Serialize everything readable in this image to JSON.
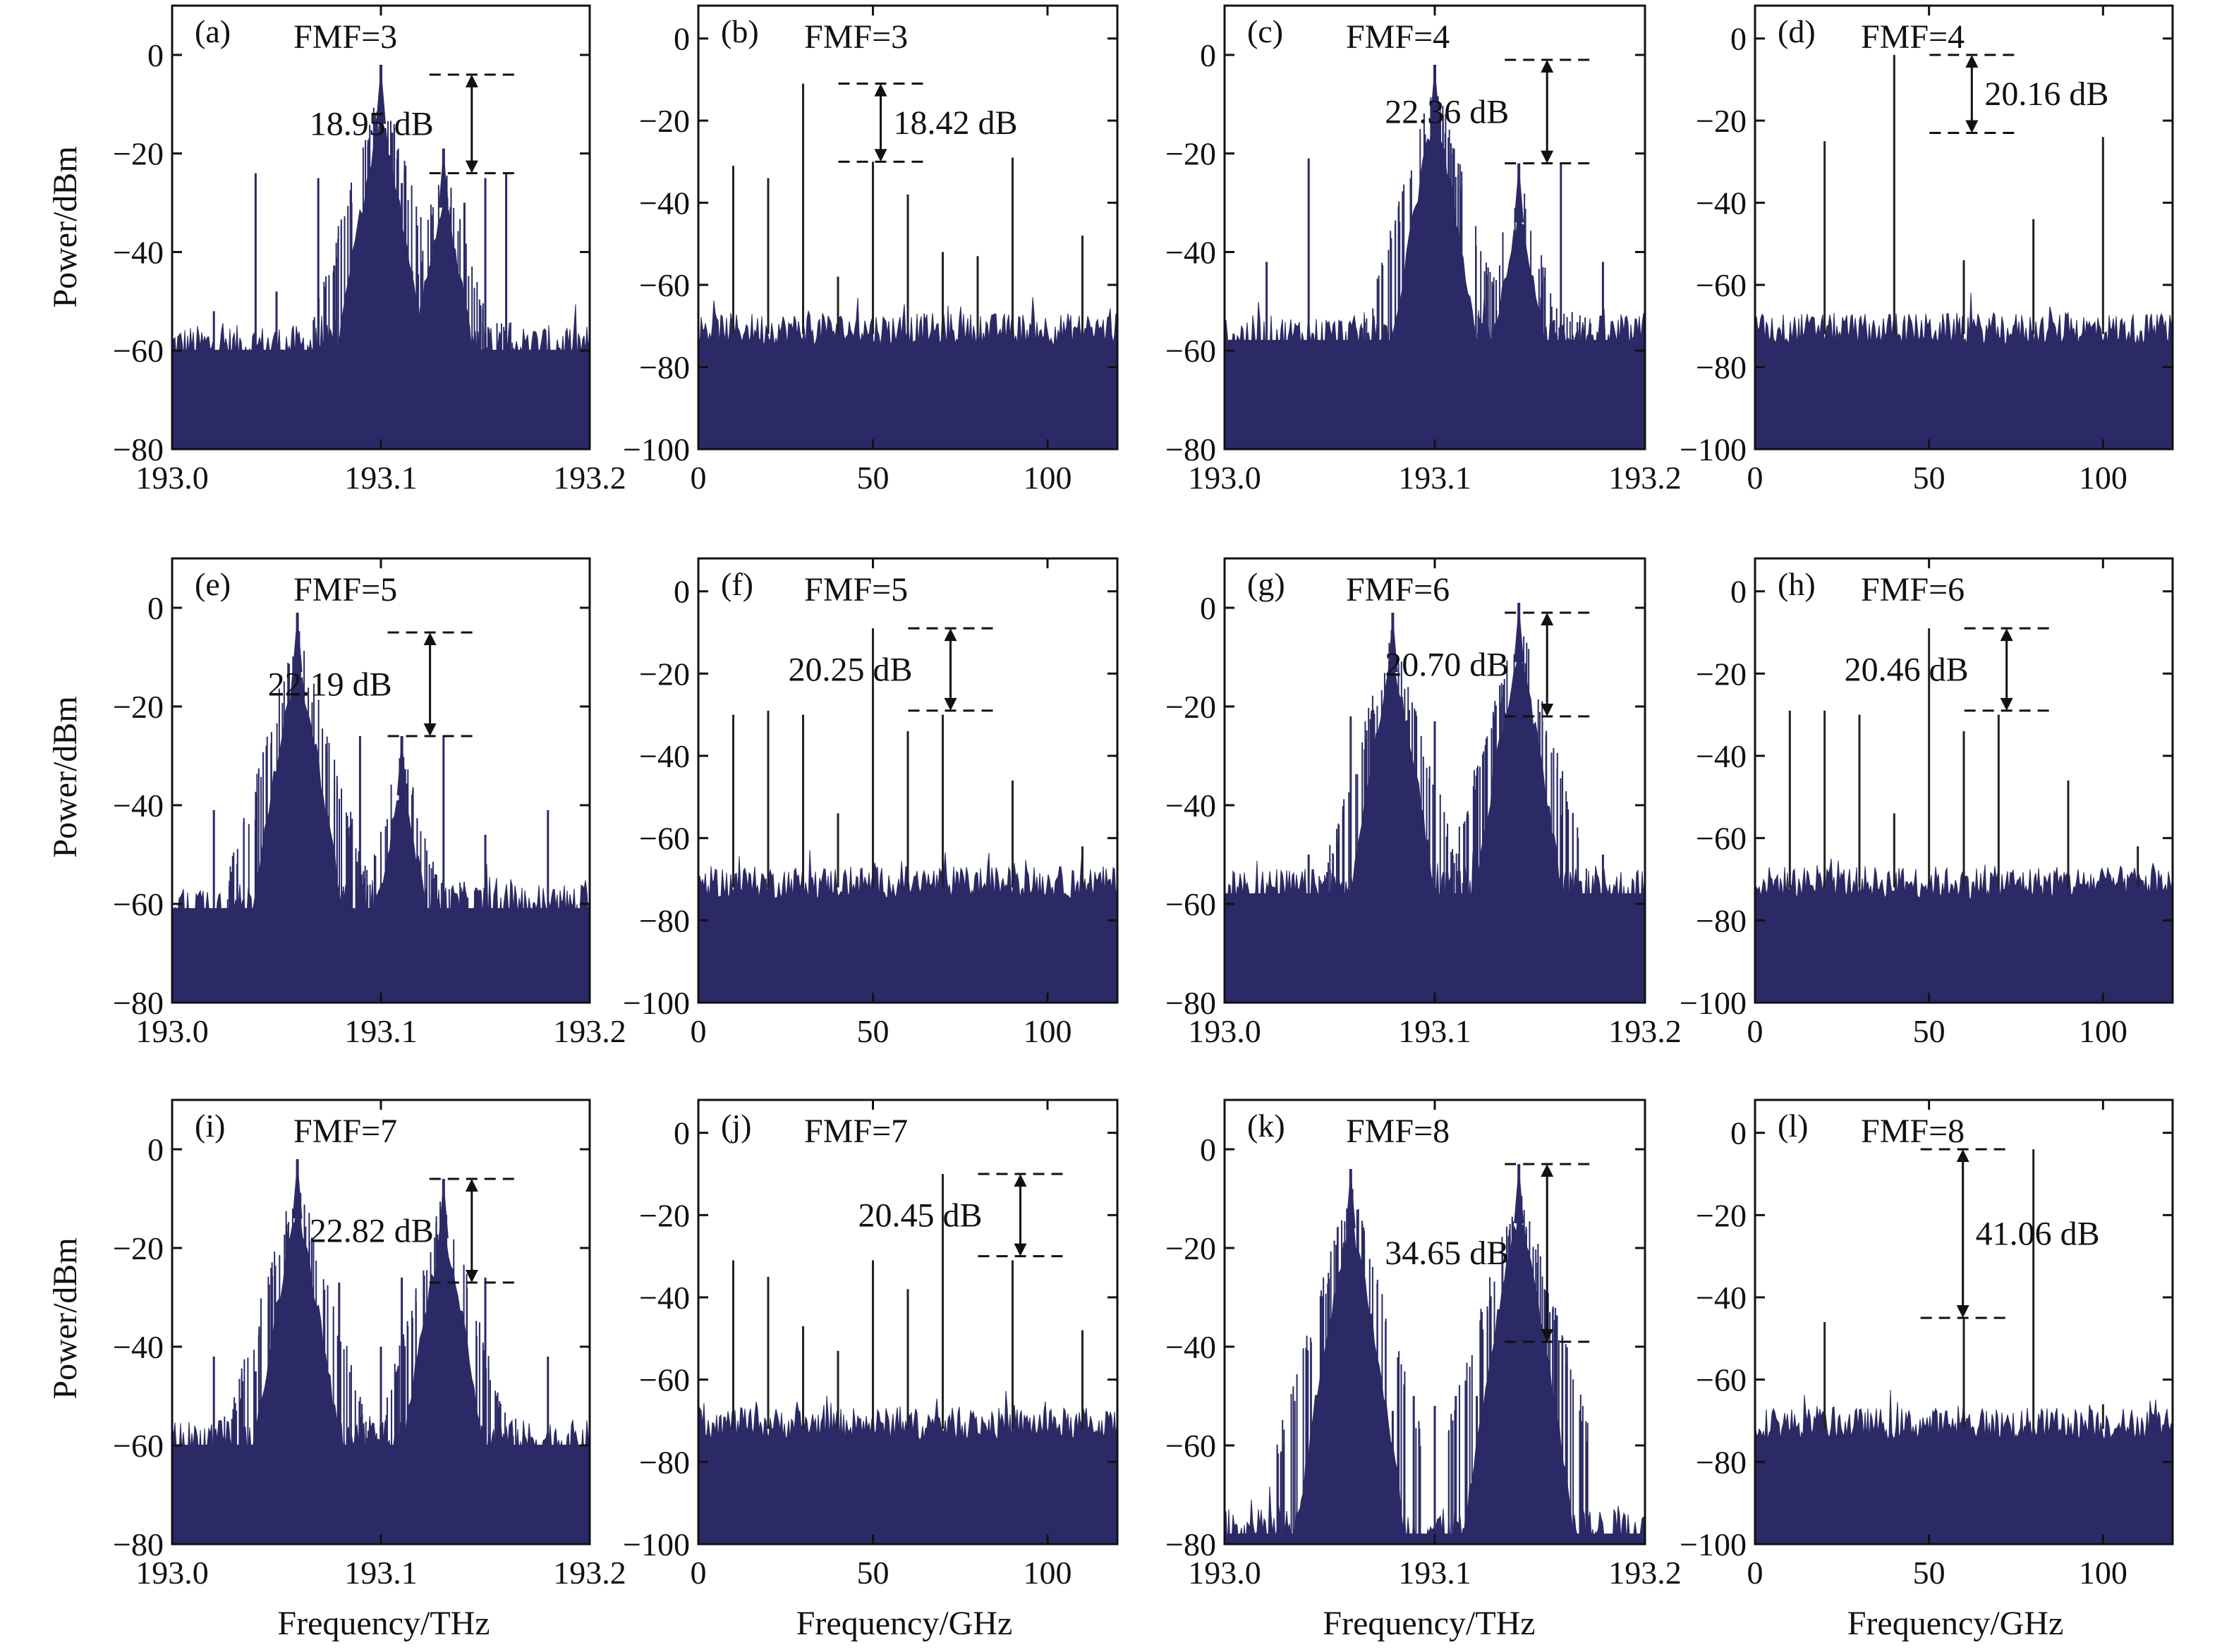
{
  "figure": {
    "ylabel": "Power/dBm",
    "xlabel_optical": "Frequency/THz",
    "xlabel_rf": "Frequency/GHz",
    "colors": {
      "trace": "#2b2a66",
      "axes": "#111111",
      "annotation": "#111111"
    }
  },
  "chart_data": [
    {
      "type": "line",
      "panel": "(a)",
      "fmf": "FMF=3",
      "domain": "optical",
      "xlim": [
        193.0,
        193.2
      ],
      "ylim": [
        -80,
        0
      ],
      "xticks": [
        "193.0",
        "193.1",
        "193.2"
      ],
      "yticks": [
        "0",
        "-20",
        "-40",
        "-60",
        "-80"
      ],
      "noise_floor": -60,
      "carriers": [
        {
          "x": 193.1,
          "y": -2
        },
        {
          "x": 193.13,
          "y": -19
        }
      ],
      "peaks": [
        {
          "x": 193.04,
          "y": -24
        },
        {
          "x": 193.07,
          "y": -25
        },
        {
          "x": 193.11,
          "y": -26
        },
        {
          "x": 193.15,
          "y": -25
        },
        {
          "x": 193.16,
          "y": -24
        },
        {
          "x": 193.02,
          "y": -52
        },
        {
          "x": 193.05,
          "y": -48
        },
        {
          "x": 193.14,
          "y": -30
        }
      ],
      "annotation": {
        "label": "18.95 dB",
        "top": -4,
        "bottom": -24
      }
    },
    {
      "type": "bar",
      "panel": "(b)",
      "fmf": "FMF=3",
      "domain": "rf",
      "xlim": [
        0,
        120
      ],
      "ylim": [
        -100,
        0
      ],
      "xticks": [
        "0",
        "50",
        "100"
      ],
      "yticks": [
        "0",
        "-20",
        "-40",
        "-60",
        "-80",
        "-100"
      ],
      "noise_floor": -72,
      "lines": [
        {
          "x": 10,
          "y": -31
        },
        {
          "x": 20,
          "y": -34
        },
        {
          "x": 30,
          "y": -11
        },
        {
          "x": 40,
          "y": -58
        },
        {
          "x": 50,
          "y": -30
        },
        {
          "x": 60,
          "y": -38
        },
        {
          "x": 70,
          "y": -52
        },
        {
          "x": 80,
          "y": -53
        },
        {
          "x": 90,
          "y": -29
        },
        {
          "x": 110,
          "y": -48
        }
      ],
      "annotation": {
        "label": "18.42 dB",
        "top": -11,
        "bottom": -30
      }
    },
    {
      "type": "line",
      "panel": "(c)",
      "fmf": "FMF=4",
      "domain": "optical",
      "xlim": [
        193.0,
        193.2
      ],
      "ylim": [
        -80,
        0
      ],
      "xticks": [
        "193.0",
        "193.1",
        "193.2"
      ],
      "yticks": [
        "0",
        "-20",
        "-40",
        "-60",
        "-80"
      ],
      "noise_floor": -58,
      "carriers": [
        {
          "x": 193.1,
          "y": -2
        },
        {
          "x": 193.14,
          "y": -22
        }
      ],
      "peaks": [
        {
          "x": 193.04,
          "y": -21
        },
        {
          "x": 193.16,
          "y": -22
        },
        {
          "x": 193.02,
          "y": -42
        },
        {
          "x": 193.18,
          "y": -42
        }
      ],
      "annotation": {
        "label": "22.36 dB",
        "top": -1,
        "bottom": -22
      }
    },
    {
      "type": "bar",
      "panel": "(d)",
      "fmf": "FMF=4",
      "domain": "rf",
      "xlim": [
        0,
        120
      ],
      "ylim": [
        -100,
        0
      ],
      "xticks": [
        "0",
        "50",
        "100"
      ],
      "yticks": [
        "0",
        "-20",
        "-40",
        "-60",
        "-80",
        "-100"
      ],
      "noise_floor": -72,
      "lines": [
        {
          "x": 20,
          "y": -25
        },
        {
          "x": 40,
          "y": -4
        },
        {
          "x": 60,
          "y": -54
        },
        {
          "x": 80,
          "y": -44
        },
        {
          "x": 100,
          "y": -24
        }
      ],
      "annotation": {
        "label": "20.16 dB",
        "top": -4,
        "bottom": -23
      }
    },
    {
      "type": "line",
      "panel": "(e)",
      "fmf": "FMF=5",
      "domain": "optical",
      "xlim": [
        193.0,
        193.2
      ],
      "ylim": [
        -80,
        0
      ],
      "xticks": [
        "193.0",
        "193.1",
        "193.2"
      ],
      "yticks": [
        "0",
        "-20",
        "-40",
        "-60",
        "-80"
      ],
      "noise_floor": -61,
      "carriers": [
        {
          "x": 193.06,
          "y": -1
        },
        {
          "x": 193.11,
          "y": -26
        }
      ],
      "peaks": [
        {
          "x": 193.02,
          "y": -41
        },
        {
          "x": 193.04,
          "y": -43
        },
        {
          "x": 193.09,
          "y": -26
        },
        {
          "x": 193.13,
          "y": -26
        },
        {
          "x": 193.15,
          "y": -46
        },
        {
          "x": 193.18,
          "y": -41
        }
      ],
      "annotation": {
        "label": "22.19 dB",
        "top": -5,
        "bottom": -26
      }
    },
    {
      "type": "bar",
      "panel": "(f)",
      "fmf": "FMF=5",
      "domain": "rf",
      "xlim": [
        0,
        120
      ],
      "ylim": [
        -100,
        0
      ],
      "xticks": [
        "0",
        "50",
        "100"
      ],
      "yticks": [
        "0",
        "-20",
        "-40",
        "-60",
        "-80",
        "-100"
      ],
      "noise_floor": -72,
      "lines": [
        {
          "x": 10,
          "y": -30
        },
        {
          "x": 20,
          "y": -29
        },
        {
          "x": 30,
          "y": -30
        },
        {
          "x": 40,
          "y": -54
        },
        {
          "x": 50,
          "y": -9
        },
        {
          "x": 60,
          "y": -34
        },
        {
          "x": 70,
          "y": -30
        },
        {
          "x": 90,
          "y": -46
        },
        {
          "x": 110,
          "y": -62
        }
      ],
      "annotation": {
        "label": "20.25 dB",
        "top": -9,
        "bottom": -29
      }
    },
    {
      "type": "line",
      "panel": "(g)",
      "fmf": "FMF=6",
      "domain": "optical",
      "xlim": [
        193.0,
        193.2
      ],
      "ylim": [
        -80,
        0
      ],
      "xticks": [
        "193.0",
        "193.1",
        "193.2"
      ],
      "yticks": [
        "0",
        "-20",
        "-40",
        "-60",
        "-80"
      ],
      "noise_floor": -58,
      "carriers": [
        {
          "x": 193.08,
          "y": -1
        },
        {
          "x": 193.14,
          "y": 1
        }
      ],
      "peaks": [
        {
          "x": 193.06,
          "y": -22
        },
        {
          "x": 193.1,
          "y": -23
        },
        {
          "x": 193.04,
          "y": -50
        },
        {
          "x": 193.16,
          "y": -42
        },
        {
          "x": 193.18,
          "y": -50
        }
      ],
      "annotation": {
        "label": "20.70 dB",
        "top": -1,
        "bottom": -22
      }
    },
    {
      "type": "bar",
      "panel": "(h)",
      "fmf": "FMF=6",
      "domain": "rf",
      "xlim": [
        0,
        120
      ],
      "ylim": [
        -100,
        0
      ],
      "xticks": [
        "0",
        "50",
        "100"
      ],
      "yticks": [
        "0",
        "-20",
        "-40",
        "-60",
        "-80",
        "-100"
      ],
      "noise_floor": -72,
      "lines": [
        {
          "x": 10,
          "y": -29
        },
        {
          "x": 20,
          "y": -29
        },
        {
          "x": 30,
          "y": -30
        },
        {
          "x": 40,
          "y": -54
        },
        {
          "x": 50,
          "y": -9
        },
        {
          "x": 60,
          "y": -34
        },
        {
          "x": 70,
          "y": -30
        },
        {
          "x": 90,
          "y": -46
        },
        {
          "x": 110,
          "y": -62
        }
      ],
      "annotation": {
        "label": "20.46 dB",
        "top": -9,
        "bottom": -29
      }
    },
    {
      "type": "line",
      "panel": "(i)",
      "fmf": "FMF=7",
      "domain": "optical",
      "xlim": [
        193.0,
        193.2
      ],
      "ylim": [
        -80,
        0
      ],
      "xticks": [
        "193.0",
        "193.1",
        "193.2"
      ],
      "yticks": [
        "0",
        "-20",
        "-40",
        "-60",
        "-80"
      ],
      "noise_floor": -60,
      "carriers": [
        {
          "x": 193.06,
          "y": -2
        },
        {
          "x": 193.13,
          "y": -6
        }
      ],
      "peaks": [
        {
          "x": 193.08,
          "y": -27
        },
        {
          "x": 193.11,
          "y": -26
        },
        {
          "x": 193.15,
          "y": -26
        },
        {
          "x": 193.02,
          "y": -42
        },
        {
          "x": 193.18,
          "y": -42
        },
        {
          "x": 193.04,
          "y": -45
        },
        {
          "x": 193.1,
          "y": -40
        }
      ],
      "annotation": {
        "label": "22.82 dB",
        "top": -6,
        "bottom": -27
      }
    },
    {
      "type": "bar",
      "panel": "(j)",
      "fmf": "FMF=7",
      "domain": "rf",
      "xlim": [
        0,
        120
      ],
      "ylim": [
        -100,
        0
      ],
      "xticks": [
        "0",
        "50",
        "100"
      ],
      "yticks": [
        "0",
        "-20",
        "-40",
        "-60",
        "-80",
        "-100"
      ],
      "noise_floor": -72,
      "lines": [
        {
          "x": 10,
          "y": -31
        },
        {
          "x": 20,
          "y": -35
        },
        {
          "x": 30,
          "y": -47
        },
        {
          "x": 40,
          "y": -53
        },
        {
          "x": 50,
          "y": -31
        },
        {
          "x": 60,
          "y": -38
        },
        {
          "x": 70,
          "y": -10
        },
        {
          "x": 90,
          "y": -31
        },
        {
          "x": 110,
          "y": -48
        }
      ],
      "annotation": {
        "label": "20.45 dB",
        "top": -10,
        "bottom": -30
      }
    },
    {
      "type": "line",
      "panel": "(k)",
      "fmf": "FMF=8",
      "domain": "optical",
      "xlim": [
        193.0,
        193.2
      ],
      "ylim": [
        -80,
        0
      ],
      "xticks": [
        "193.0",
        "193.1",
        "193.2"
      ],
      "yticks": [
        "0",
        "-20",
        "-40",
        "-60",
        "-80"
      ],
      "noise_floor": -78,
      "carriers": [
        {
          "x": 193.06,
          "y": -4
        },
        {
          "x": 193.14,
          "y": -3
        }
      ],
      "peaks": [
        {
          "x": 193.07,
          "y": -47
        },
        {
          "x": 193.08,
          "y": -53
        },
        {
          "x": 193.09,
          "y": -50
        },
        {
          "x": 193.1,
          "y": -52
        },
        {
          "x": 193.11,
          "y": -50
        },
        {
          "x": 193.12,
          "y": -50
        },
        {
          "x": 193.13,
          "y": -40
        },
        {
          "x": 193.05,
          "y": -60
        },
        {
          "x": 193.15,
          "y": -58
        }
      ],
      "annotation": {
        "label": "34.65 dB",
        "top": -3,
        "bottom": -39
      }
    },
    {
      "type": "bar",
      "panel": "(l)",
      "fmf": "FMF=8",
      "domain": "rf",
      "xlim": [
        0,
        120
      ],
      "ylim": [
        -100,
        0
      ],
      "xticks": [
        "0",
        "50",
        "100"
      ],
      "yticks": [
        "0",
        "-20",
        "-40",
        "-60",
        "-80",
        "-100"
      ],
      "noise_floor": -72,
      "lines": [
        {
          "x": 20,
          "y": -46
        },
        {
          "x": 60,
          "y": -45
        },
        {
          "x": 80,
          "y": -4
        },
        {
          "x": 100,
          "y": -66
        }
      ],
      "annotation": {
        "label": "41.06 dB",
        "top": -4,
        "bottom": -45
      }
    }
  ]
}
